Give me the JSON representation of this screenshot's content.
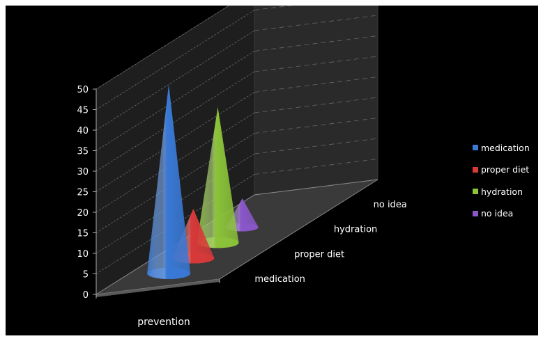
{
  "chart_data": {
    "type": "bar",
    "style": "3d-cone",
    "categories": [
      "prevention"
    ],
    "series": [
      {
        "name": "medication",
        "values": [
          46
        ],
        "color": "#3a79d6"
      },
      {
        "name": "proper diet",
        "values": [
          12
        ],
        "color": "#d83a3a"
      },
      {
        "name": "hydration",
        "values": [
          33
        ],
        "color": "#8cc43a"
      },
      {
        "name": "no idea",
        "values": [
          7
        ],
        "color": "#8a57c9"
      }
    ],
    "yticks": [
      "0",
      "5",
      "10",
      "15",
      "20",
      "25",
      "30",
      "35",
      "40",
      "45",
      "50"
    ],
    "ylim": [
      0,
      50
    ],
    "depth_labels": [
      "medication",
      "proper diet",
      "hydration",
      "no idea"
    ],
    "grid": true,
    "legend": "right",
    "background": "#000000",
    "text_color": "#ffffff"
  }
}
